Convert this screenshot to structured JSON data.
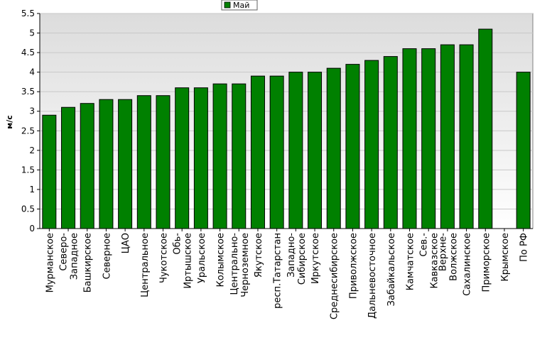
{
  "chart_data": {
    "type": "bar",
    "title": "",
    "xlabel": "",
    "ylabel": "м/с",
    "ylim": [
      0,
      5.5
    ],
    "yticks": [
      0,
      0.5,
      1,
      1.5,
      2,
      2.5,
      3,
      3.5,
      4,
      4.5,
      5,
      5.5
    ],
    "ytick_labels": [
      "0",
      "0.5",
      "1",
      "1.5",
      "2",
      "2.5",
      "3",
      "3.5",
      "4",
      "4.5",
      "5",
      "5.5"
    ],
    "grid": true,
    "legend_position": "top-center",
    "categories": [
      "Мурманское",
      "Северо-Западное",
      "Башкирское",
      "Северное",
      "ЦАО",
      "Центральное",
      "Чукотское",
      "Обь-Иртышское",
      "Уральское",
      "Колымское",
      "Центрально-Черноземное",
      "Якутское",
      "респ.Татарстан",
      "Западно-Сибирское",
      "Иркутское",
      "Среднесибирское",
      "Приволжское",
      "Дальневосточное",
      "Забайкальское",
      "Камчатское",
      "Сев.-Кавказское",
      "Верхне-Волжское",
      "Сахалинское",
      "Приморское",
      "Крымское",
      "По РФ"
    ],
    "label_lines": [
      [
        "Мурманское"
      ],
      [
        "Северо-",
        "Западное"
      ],
      [
        "Башкирское"
      ],
      [
        "Северное"
      ],
      [
        "ЦАО"
      ],
      [
        "Центральное"
      ],
      [
        "Чукотское"
      ],
      [
        "Обь-",
        "Иртышское"
      ],
      [
        "Уральское"
      ],
      [
        "Колымское"
      ],
      [
        "Центрально-",
        "Черноземное"
      ],
      [
        "Якутское"
      ],
      [
        "респ.Татарстан"
      ],
      [
        "Западно-",
        "Сибирское"
      ],
      [
        "Иркутское"
      ],
      [
        "Среднесибирское"
      ],
      [
        "Приволжское"
      ],
      [
        "Дальневосточное"
      ],
      [
        "Забайкальское"
      ],
      [
        "Камчатское"
      ],
      [
        "Сев.-",
        "Кавказское"
      ],
      [
        "Верхне-",
        "Волжское"
      ],
      [
        "Сахалинское"
      ],
      [
        "Приморское"
      ],
      [
        "Крымское"
      ],
      [
        "По РФ"
      ]
    ],
    "series": [
      {
        "name": "Май",
        "color": "#008000",
        "values": [
          2.9,
          3.1,
          3.2,
          3.3,
          3.3,
          3.4,
          3.4,
          3.6,
          3.6,
          3.7,
          3.7,
          3.9,
          3.9,
          4.0,
          4.0,
          4.1,
          4.2,
          4.3,
          4.4,
          4.6,
          4.6,
          4.7,
          4.7,
          5.1,
          null,
          4.0
        ]
      }
    ]
  },
  "colors": {
    "bar": "#008000",
    "plot_background_top": "#e0e0e0",
    "plot_background_bottom": "#ffffff",
    "grid": "#c8c8c8"
  }
}
